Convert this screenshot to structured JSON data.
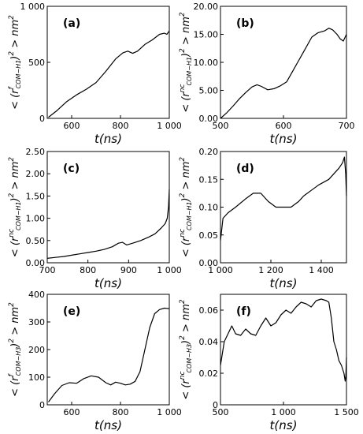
{
  "chart_data": [
    {
      "type": "line",
      "panel_label": "(a)",
      "xlabel": "t(ns)",
      "ylabel": "< (r^f_COM−H1)^2 > nm^2",
      "xlim": [
        500,
        1000
      ],
      "ylim": [
        0,
        1000
      ],
      "xticks": [
        600,
        800,
        1000
      ],
      "xtick_labels": [
        "600",
        "800",
        "1 000"
      ],
      "yticks": [
        0,
        500,
        1000
      ],
      "ytick_labels": [
        "0",
        "500",
        "1 000"
      ],
      "series": [
        {
          "x": [
            505,
            540,
            580,
            620,
            660,
            700,
            740,
            780,
            810,
            830,
            850,
            870,
            900,
            930,
            960,
            980,
            990,
            1000
          ],
          "y": [
            10,
            70,
            150,
            210,
            260,
            320,
            420,
            530,
            585,
            600,
            580,
            600,
            660,
            700,
            750,
            760,
            750,
            780
          ]
        }
      ]
    },
    {
      "type": "line",
      "panel_label": "(b)",
      "xlabel": "t(ns)",
      "ylabel": "< (r^nc_COM−H1)^2 > nm^2",
      "xlim": [
        500,
        700
      ],
      "ylim": [
        0,
        20
      ],
      "xticks": [
        500,
        600,
        700
      ],
      "xtick_labels": [
        "500",
        "600",
        "700"
      ],
      "yticks": [
        0,
        5,
        10,
        15,
        20
      ],
      "ytick_labels": [
        "0.00",
        "5.00",
        "10.00",
        "15.00",
        "20.00"
      ],
      "series": [
        {
          "x": [
            500,
            510,
            520,
            530,
            540,
            550,
            558,
            565,
            575,
            585,
            595,
            605,
            615,
            625,
            635,
            645,
            655,
            665,
            672,
            678,
            685,
            690,
            695,
            700
          ],
          "y": [
            0,
            1.0,
            2.2,
            3.5,
            4.6,
            5.6,
            6.0,
            5.7,
            5.1,
            5.3,
            5.8,
            6.5,
            8.5,
            10.5,
            12.5,
            14.5,
            15.3,
            15.6,
            16.1,
            15.8,
            15.0,
            14.2,
            13.8,
            15.0
          ]
        }
      ]
    },
    {
      "type": "line",
      "panel_label": "(c)",
      "xlabel": "t(ns)",
      "ylabel": "< (r^nc_COM−H1)^2 > nm^2",
      "xlim": [
        700,
        1000
      ],
      "ylim": [
        0,
        2.5
      ],
      "xticks": [
        700,
        800,
        900,
        1000
      ],
      "xtick_labels": [
        "700",
        "800",
        "900",
        "1 000"
      ],
      "yticks": [
        0,
        0.5,
        1.0,
        1.5,
        2.0,
        2.5
      ],
      "ytick_labels": [
        "0.00",
        "0.50",
        "1.00",
        "1.50",
        "2.00",
        "2.50"
      ],
      "series": [
        {
          "x": [
            700,
            720,
            740,
            760,
            780,
            800,
            820,
            840,
            860,
            875,
            885,
            895,
            910,
            930,
            950,
            965,
            980,
            990,
            995,
            998,
            1000
          ],
          "y": [
            0.1,
            0.12,
            0.14,
            0.17,
            0.2,
            0.23,
            0.26,
            0.3,
            0.36,
            0.44,
            0.46,
            0.4,
            0.44,
            0.5,
            0.58,
            0.65,
            0.78,
            0.88,
            1.0,
            1.25,
            1.65
          ]
        }
      ]
    },
    {
      "type": "line",
      "panel_label": "(d)",
      "xlabel": "t(ns)",
      "ylabel": "< (r^nc_COM−H1)^2 > nm^2",
      "xlim": [
        1000,
        1500
      ],
      "ylim": [
        0,
        0.2
      ],
      "xticks": [
        1000,
        1200,
        1400
      ],
      "xtick_labels": [
        "1 000",
        "1 200",
        "1 400"
      ],
      "yticks": [
        0,
        0.05,
        0.1,
        0.15,
        0.2
      ],
      "ytick_labels": [
        "0.00",
        "0.05",
        "0.10",
        "0.15",
        "0.20"
      ],
      "series": [
        {
          "x": [
            1000,
            1010,
            1030,
            1060,
            1100,
            1130,
            1160,
            1190,
            1220,
            1250,
            1280,
            1310,
            1330,
            1360,
            1390,
            1410,
            1430,
            1450,
            1470,
            1485,
            1492,
            1497,
            1500
          ],
          "y": [
            0.04,
            0.08,
            0.09,
            0.1,
            0.115,
            0.125,
            0.125,
            0.11,
            0.1,
            0.1,
            0.1,
            0.11,
            0.12,
            0.13,
            0.14,
            0.145,
            0.15,
            0.16,
            0.17,
            0.18,
            0.19,
            0.16,
            0.12
          ]
        }
      ]
    },
    {
      "type": "line",
      "panel_label": "(e)",
      "xlabel": "t(ns)",
      "ylabel": "< (r^f_COM−H3)^2 > nm^2",
      "xlim": [
        500,
        1000
      ],
      "ylim": [
        0,
        400
      ],
      "xticks": [
        600,
        800,
        1000
      ],
      "xtick_labels": [
        "600",
        "800",
        "1 000"
      ],
      "yticks": [
        0,
        100,
        200,
        300,
        400
      ],
      "ytick_labels": [
        "0",
        "100",
        "200",
        "300",
        "400"
      ],
      "series": [
        {
          "x": [
            505,
            530,
            560,
            590,
            620,
            650,
            680,
            710,
            740,
            760,
            780,
            800,
            820,
            840,
            860,
            880,
            900,
            920,
            940,
            960,
            980,
            1000
          ],
          "y": [
            10,
            40,
            70,
            80,
            78,
            95,
            105,
            100,
            80,
            72,
            82,
            78,
            72,
            75,
            85,
            120,
            200,
            280,
            330,
            345,
            350,
            348
          ]
        }
      ]
    },
    {
      "type": "line",
      "panel_label": "(f)",
      "xlabel": "t(ns)",
      "ylabel": "< (r^nc_COM−H3)^2 > nm^2",
      "xlim": [
        500,
        1500
      ],
      "ylim": [
        0,
        0.07
      ],
      "xticks": [
        500,
        1000,
        1500
      ],
      "xtick_labels": [
        "500",
        "1 000",
        "1 500"
      ],
      "yticks": [
        0,
        0.02,
        0.04,
        0.06
      ],
      "ytick_labels": [
        "0",
        "0.02",
        "0.04",
        "0.06"
      ],
      "series": [
        {
          "x": [
            500,
            530,
            560,
            590,
            620,
            660,
            700,
            740,
            780,
            820,
            860,
            900,
            940,
            980,
            1020,
            1060,
            1100,
            1140,
            1180,
            1220,
            1260,
            1300,
            1340,
            1360,
            1380,
            1400,
            1420,
            1440,
            1460,
            1480,
            1490,
            1495,
            1500
          ],
          "y": [
            0.025,
            0.04,
            0.045,
            0.05,
            0.045,
            0.044,
            0.048,
            0.045,
            0.044,
            0.05,
            0.055,
            0.05,
            0.052,
            0.057,
            0.06,
            0.058,
            0.062,
            0.065,
            0.064,
            0.062,
            0.066,
            0.067,
            0.066,
            0.065,
            0.055,
            0.04,
            0.035,
            0.028,
            0.025,
            0.02,
            0.015,
            0.018,
            0.03
          ]
        }
      ]
    }
  ]
}
